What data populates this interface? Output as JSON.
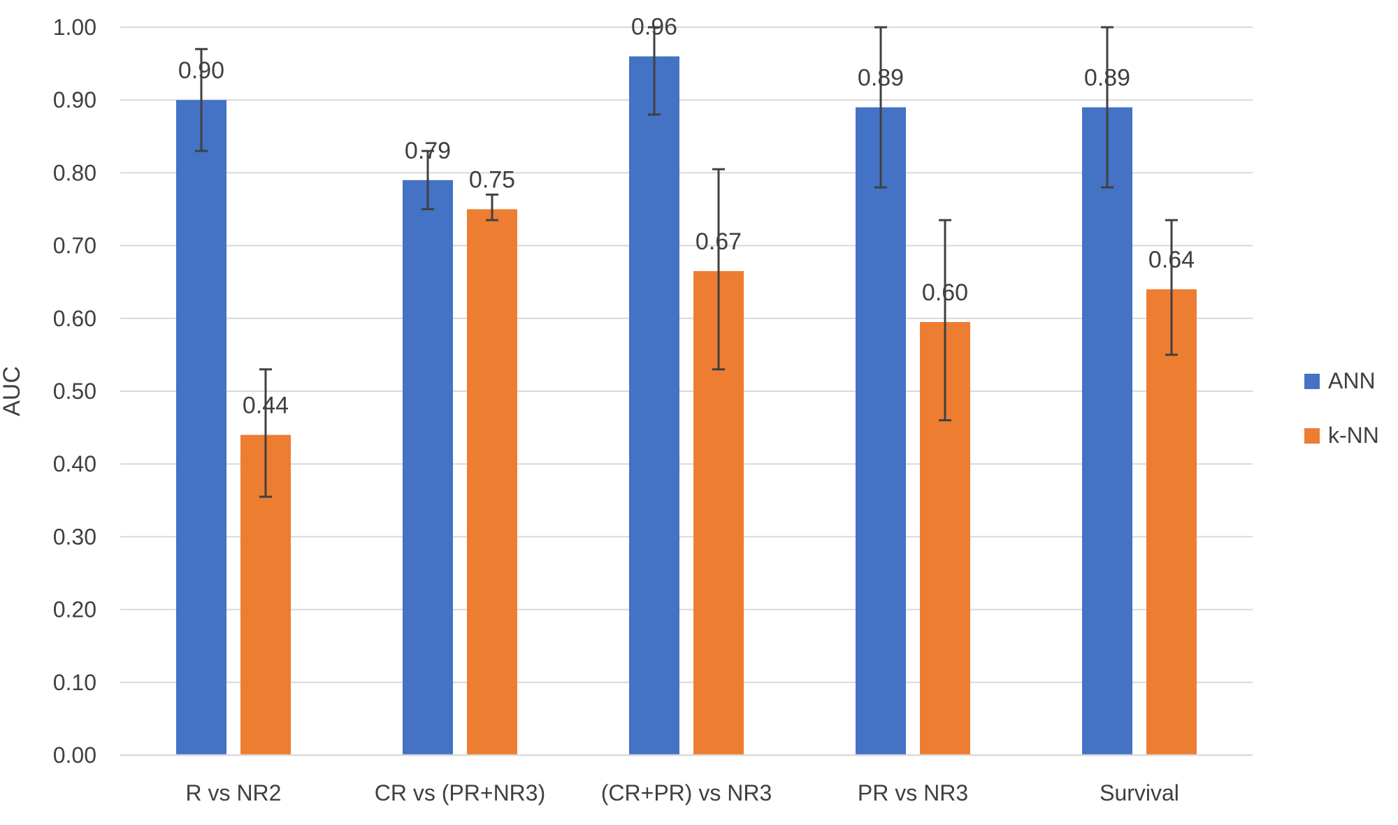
{
  "chart_data": {
    "type": "bar",
    "title": "",
    "xlabel": "",
    "ylabel": "AUC",
    "ylim": [
      0,
      1.0
    ],
    "ytick_step": 0.1,
    "ytick_labels": [
      "0.00",
      "0.10",
      "0.20",
      "0.30",
      "0.40",
      "0.50",
      "0.60",
      "0.70",
      "0.80",
      "0.90",
      "1.00"
    ],
    "grid": true,
    "legend_position": "right",
    "categories": [
      "R vs NR2",
      "CR vs (PR+NR3)",
      "(CR+PR) vs NR3",
      "PR vs NR3",
      "Survival"
    ],
    "series": [
      {
        "name": "ANN",
        "color": "#4472C4",
        "values": [
          0.9,
          0.79,
          0.96,
          0.89,
          0.89
        ],
        "labels": [
          "0.90",
          "0.79",
          "0.96",
          "0.89",
          "0.89"
        ],
        "error_low": [
          0.83,
          0.75,
          0.88,
          0.78,
          0.78
        ],
        "error_high": [
          0.97,
          0.83,
          1.0,
          1.0,
          1.0
        ]
      },
      {
        "name": "k-NN",
        "color": "#ED7D31",
        "values": [
          0.44,
          0.75,
          0.665,
          0.595,
          0.64
        ],
        "labels": [
          "0.44",
          "0.75",
          "0.67",
          "0.60",
          "0.64"
        ],
        "error_low": [
          0.355,
          0.735,
          0.53,
          0.46,
          0.55
        ],
        "error_high": [
          0.53,
          0.77,
          0.805,
          0.735,
          0.735
        ]
      }
    ]
  }
}
